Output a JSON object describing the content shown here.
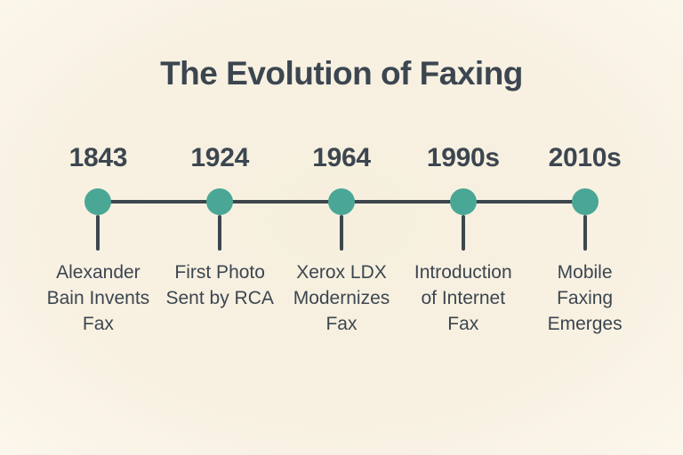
{
  "title": "The Evolution of Faxing",
  "theme": {
    "background": "#f8f1e2",
    "text_color": "#3c4650",
    "accent_teal": "#4aa796",
    "line_color": "#3d464d"
  },
  "timeline": {
    "milestones": [
      {
        "year": "1843",
        "label": "Alexander Bain Invents Fax"
      },
      {
        "year": "1924",
        "label": "First Photo Sent by RCA"
      },
      {
        "year": "1964",
        "label": "Xerox LDX Modernizes Fax"
      },
      {
        "year": "1990s",
        "label": "Introduction of Internet Fax"
      },
      {
        "year": "2010s",
        "label": "Mobile Faxing Emerges"
      }
    ]
  }
}
